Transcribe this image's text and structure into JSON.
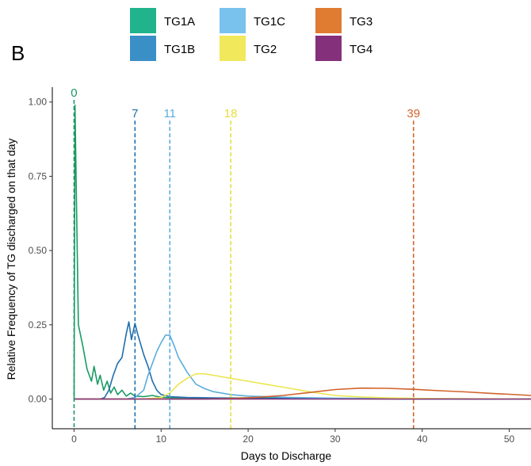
{
  "panel_label": "B",
  "chart_data": {
    "type": "line",
    "xlabel": "Days to Discharge",
    "ylabel": "Relative Frequency of TG discharged on that day",
    "xlim": [
      -2.5,
      52.5
    ],
    "ylim": [
      -0.1,
      1.05
    ],
    "x_ticks": [
      0,
      10,
      20,
      30,
      40,
      50
    ],
    "y_ticks": [
      0.0,
      0.25,
      0.5,
      0.75,
      1.0
    ],
    "y_tick_labels": [
      "0.00",
      "0.25",
      "0.50",
      "0.75",
      "1.00"
    ],
    "grid": false,
    "legend_position": "top",
    "legend": [
      {
        "label": "TG1A",
        "color": "#21b38c"
      },
      {
        "label": "TG1B",
        "color": "#3a8fc7"
      },
      {
        "label": "TG1C",
        "color": "#79c2ee"
      },
      {
        "label": "TG2",
        "color": "#f2e85c"
      },
      {
        "label": "TG3",
        "color": "#e07b32"
      },
      {
        "label": "TG4",
        "color": "#85307a"
      }
    ],
    "series": [
      {
        "name": "TG1A",
        "color": "#1a9a63",
        "points": [
          [
            0,
            0.0
          ],
          [
            0.1,
            0.99
          ],
          [
            0.5,
            0.25
          ],
          [
            1,
            0.18
          ],
          [
            1.5,
            0.1
          ],
          [
            2,
            0.06
          ],
          [
            2.3,
            0.11
          ],
          [
            2.7,
            0.05
          ],
          [
            3,
            0.08
          ],
          [
            3.4,
            0.03
          ],
          [
            3.8,
            0.06
          ],
          [
            4.2,
            0.02
          ],
          [
            4.6,
            0.04
          ],
          [
            5,
            0.015
          ],
          [
            5.5,
            0.03
          ],
          [
            6,
            0.01
          ],
          [
            6.5,
            0.02
          ],
          [
            7,
            0.01
          ],
          [
            8,
            0.008
          ],
          [
            9,
            0.012
          ],
          [
            10,
            0.006
          ],
          [
            12,
            0.004
          ],
          [
            15,
            0.003
          ],
          [
            20,
            0.004
          ],
          [
            25,
            0.003
          ],
          [
            30,
            0.002
          ],
          [
            40,
            0.001
          ],
          [
            52.5,
            0.0
          ]
        ]
      },
      {
        "name": "TG1B",
        "color": "#1f6fad",
        "points": [
          [
            0,
            0.0
          ],
          [
            3,
            0.0
          ],
          [
            3.5,
            0.005
          ],
          [
            4,
            0.03
          ],
          [
            4.5,
            0.08
          ],
          [
            5,
            0.12
          ],
          [
            5.5,
            0.14
          ],
          [
            6,
            0.22
          ],
          [
            6.3,
            0.26
          ],
          [
            6.6,
            0.2
          ],
          [
            7,
            0.255
          ],
          [
            7.3,
            0.22
          ],
          [
            7.6,
            0.19
          ],
          [
            8,
            0.15
          ],
          [
            8.5,
            0.11
          ],
          [
            9,
            0.06
          ],
          [
            9.5,
            0.03
          ],
          [
            10,
            0.015
          ],
          [
            11,
            0.008
          ],
          [
            13,
            0.005
          ],
          [
            16,
            0.004
          ],
          [
            20,
            0.003
          ],
          [
            25,
            0.002
          ],
          [
            30,
            0.001
          ],
          [
            40,
            0.0
          ],
          [
            52.5,
            0.0
          ]
        ]
      },
      {
        "name": "TG1C",
        "color": "#5aacdc",
        "points": [
          [
            0,
            0.0
          ],
          [
            6,
            0.0
          ],
          [
            7,
            0.005
          ],
          [
            8,
            0.03
          ],
          [
            8.5,
            0.08
          ],
          [
            9,
            0.12
          ],
          [
            9.5,
            0.16
          ],
          [
            10,
            0.19
          ],
          [
            10.5,
            0.215
          ],
          [
            11,
            0.215
          ],
          [
            11.5,
            0.18
          ],
          [
            12,
            0.14
          ],
          [
            13,
            0.09
          ],
          [
            14,
            0.05
          ],
          [
            15,
            0.035
          ],
          [
            16,
            0.025
          ],
          [
            18,
            0.015
          ],
          [
            20,
            0.01
          ],
          [
            25,
            0.005
          ],
          [
            30,
            0.003
          ],
          [
            40,
            0.001
          ],
          [
            52.5,
            0.0
          ]
        ]
      },
      {
        "name": "TG2",
        "color": "#ede54f",
        "points": [
          [
            0,
            0.0
          ],
          [
            8,
            0.0
          ],
          [
            10,
            0.005
          ],
          [
            11,
            0.02
          ],
          [
            12,
            0.05
          ],
          [
            13,
            0.07
          ],
          [
            14,
            0.085
          ],
          [
            15,
            0.085
          ],
          [
            16,
            0.08
          ],
          [
            18,
            0.07
          ],
          [
            20,
            0.06
          ],
          [
            22,
            0.05
          ],
          [
            24,
            0.04
          ],
          [
            26,
            0.03
          ],
          [
            28,
            0.02
          ],
          [
            30,
            0.012
          ],
          [
            33,
            0.007
          ],
          [
            36,
            0.004
          ],
          [
            40,
            0.002
          ],
          [
            45,
            0.001
          ],
          [
            52.5,
            0.0
          ]
        ]
      },
      {
        "name": "TG3",
        "color": "#d0632a",
        "points": [
          [
            0,
            0.0
          ],
          [
            15,
            0.0
          ],
          [
            18,
            0.002
          ],
          [
            21,
            0.006
          ],
          [
            24,
            0.012
          ],
          [
            27,
            0.022
          ],
          [
            30,
            0.032
          ],
          [
            33,
            0.037
          ],
          [
            36,
            0.036
          ],
          [
            39,
            0.033
          ],
          [
            42,
            0.028
          ],
          [
            45,
            0.024
          ],
          [
            48,
            0.019
          ],
          [
            50,
            0.016
          ],
          [
            52.5,
            0.012
          ]
        ]
      },
      {
        "name": "TG4",
        "color": "#85307a",
        "points": [
          [
            0,
            0.0
          ],
          [
            52.5,
            0.0
          ]
        ]
      }
    ],
    "reference_lines": [
      {
        "x": 0,
        "label": "0",
        "color": "#1a9a63",
        "top": 1.05
      },
      {
        "x": 7,
        "label": "7",
        "color": "#1f6fad",
        "top": 0.98
      },
      {
        "x": 11,
        "label": "11",
        "color": "#5aacdc",
        "top": 0.98
      },
      {
        "x": 18,
        "label": "18",
        "color": "#e8dc3a",
        "top": 0.98
      },
      {
        "x": 39,
        "label": "39",
        "color": "#d0632a",
        "top": 0.98
      }
    ]
  }
}
